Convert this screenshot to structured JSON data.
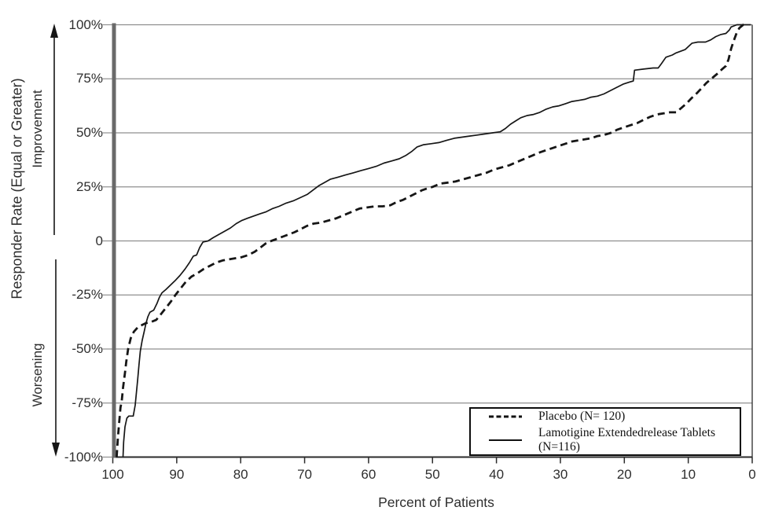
{
  "figure": {
    "y_axis": {
      "label": "Responder Rate (Equal or Greater)",
      "upper_label": "Improvement",
      "lower_label": "Worsening"
    },
    "x_axis": {
      "label": "Percent of Patients"
    },
    "legend": {
      "items": [
        {
          "label": "Placebo (N= 120)",
          "style": "dashed"
        },
        {
          "label": "Lamotigine Extendedrelease Tablets (N=116)",
          "style": "solid"
        }
      ]
    }
  },
  "colors": {
    "curve": "#161616",
    "gridline": "#8f8f8f",
    "y_axis": "#6a6a6a",
    "axis_line": "#2b2b2b",
    "text": "#2e2e2e",
    "background": "#ffffff"
  },
  "chart_data": {
    "type": "line",
    "title": "",
    "xlabel": "Percent of Patients",
    "ylabel": "Responder Rate (Equal or Greater)",
    "x_axis_reversed": true,
    "xlim": [
      100,
      0
    ],
    "ylim": [
      -100,
      100
    ],
    "grid": true,
    "legend_position": "lower right",
    "annotations": [
      "Improvement",
      "Worsening"
    ],
    "x_ticks": [
      {
        "label": "100",
        "value": 100
      },
      {
        "label": "90",
        "value": 90
      },
      {
        "label": "80",
        "value": 80
      },
      {
        "label": "70",
        "value": 70
      },
      {
        "label": "60",
        "value": 60
      },
      {
        "label": "50",
        "value": 50
      },
      {
        "label": "40",
        "value": 40
      },
      {
        "label": "30",
        "value": 30
      },
      {
        "label": "20",
        "value": 20
      },
      {
        "label": "10",
        "value": 10
      },
      {
        "label": "0",
        "value": 0
      }
    ],
    "y_ticks": [
      {
        "label": "100%",
        "value": 100
      },
      {
        "label": "75%",
        "value": 75
      },
      {
        "label": "50%",
        "value": 50
      },
      {
        "label": "25%",
        "value": 25
      },
      {
        "label": "0",
        "value": 0
      },
      {
        "label": "-25%",
        "value": -25
      },
      {
        "label": "-50%",
        "value": -50
      },
      {
        "label": "-75%",
        "value": -75
      },
      {
        "label": "-100%",
        "value": -100
      }
    ],
    "series": [
      {
        "name": "Placebo (N= 120)",
        "style": "dashed",
        "points": [
          [
            99.4,
            -100
          ],
          [
            99.2,
            -91
          ],
          [
            99,
            -84
          ],
          [
            98.8,
            -77
          ],
          [
            98.6,
            -74
          ],
          [
            98.4,
            -68
          ],
          [
            98.1,
            -61
          ],
          [
            97.9,
            -56
          ],
          [
            97.6,
            -50
          ],
          [
            97.2,
            -45
          ],
          [
            96.7,
            -42
          ],
          [
            96.1,
            -40
          ],
          [
            95.5,
            -39
          ],
          [
            94.8,
            -38
          ],
          [
            94,
            -37.5
          ],
          [
            93.2,
            -36.5
          ],
          [
            92.5,
            -34
          ],
          [
            91.7,
            -31
          ],
          [
            90.9,
            -28
          ],
          [
            90.2,
            -25
          ],
          [
            89.4,
            -22
          ],
          [
            88.6,
            -19
          ],
          [
            87.7,
            -16.5
          ],
          [
            86.8,
            -15
          ],
          [
            85.8,
            -13
          ],
          [
            84.8,
            -11.5
          ],
          [
            83.8,
            -10
          ],
          [
            82.8,
            -9
          ],
          [
            81.8,
            -8.5
          ],
          [
            80.8,
            -8
          ],
          [
            79.8,
            -7.5
          ],
          [
            78.8,
            -6.5
          ],
          [
            77.8,
            -5
          ],
          [
            76.9,
            -3
          ],
          [
            76,
            -1
          ],
          [
            75.2,
            0
          ],
          [
            74.3,
            1
          ],
          [
            73.4,
            2
          ],
          [
            72.5,
            3
          ],
          [
            71.6,
            4
          ],
          [
            70.6,
            5.5
          ],
          [
            69.6,
            7
          ],
          [
            68.6,
            8
          ],
          [
            67.4,
            8.5
          ],
          [
            66.2,
            9.5
          ],
          [
            65,
            10.5
          ],
          [
            63.8,
            12
          ],
          [
            62.6,
            13.5
          ],
          [
            61.4,
            15
          ],
          [
            60.2,
            15.5
          ],
          [
            59,
            16
          ],
          [
            57.8,
            16
          ],
          [
            56.6,
            16.5
          ],
          [
            55.6,
            18
          ],
          [
            54.6,
            19
          ],
          [
            53.6,
            20.5
          ],
          [
            52.6,
            22
          ],
          [
            51.6,
            23.5
          ],
          [
            50.6,
            24.5
          ],
          [
            50,
            25
          ],
          [
            48.8,
            26.5
          ],
          [
            47.6,
            27
          ],
          [
            46.4,
            27.5
          ],
          [
            45.2,
            28.5
          ],
          [
            44,
            29.5
          ],
          [
            42.8,
            30.5
          ],
          [
            41.6,
            31.5
          ],
          [
            40.4,
            33
          ],
          [
            39.2,
            34
          ],
          [
            38,
            35
          ],
          [
            36.8,
            36.5
          ],
          [
            35.6,
            38
          ],
          [
            34.4,
            39.5
          ],
          [
            33.2,
            41
          ],
          [
            32.2,
            42
          ],
          [
            31.2,
            43
          ],
          [
            30.2,
            44
          ],
          [
            29.2,
            45
          ],
          [
            28.2,
            46
          ],
          [
            27.2,
            46.5
          ],
          [
            26.2,
            47
          ],
          [
            25.2,
            47.5
          ],
          [
            24.2,
            48.5
          ],
          [
            23.2,
            49
          ],
          [
            22.1,
            50
          ],
          [
            21.1,
            51.5
          ],
          [
            20.1,
            52.5
          ],
          [
            19.1,
            53.5
          ],
          [
            18,
            54.5
          ],
          [
            17,
            56
          ],
          [
            15.9,
            57.5
          ],
          [
            14.9,
            58.5
          ],
          [
            13.9,
            59
          ],
          [
            12.9,
            59.5
          ],
          [
            11.9,
            59.5
          ],
          [
            11.1,
            61.5
          ],
          [
            10.3,
            63.5
          ],
          [
            9.5,
            66
          ],
          [
            8.6,
            68.5
          ],
          [
            7.8,
            71
          ],
          [
            7.2,
            73
          ],
          [
            6.6,
            74.5
          ],
          [
            6,
            76
          ],
          [
            5.4,
            77.5
          ],
          [
            4.7,
            79.5
          ],
          [
            4.1,
            81
          ],
          [
            3.7,
            84
          ],
          [
            3.3,
            89
          ],
          [
            2.9,
            92.5
          ],
          [
            2.4,
            96.5
          ],
          [
            2,
            98.5
          ],
          [
            1.4,
            100
          ],
          [
            0.7,
            100
          ]
        ]
      },
      {
        "name": "Lamotigine Extendedrelease Tablets (N=116)",
        "style": "solid",
        "points": [
          [
            98.4,
            -100
          ],
          [
            98.3,
            -93
          ],
          [
            98.1,
            -86
          ],
          [
            97.8,
            -82
          ],
          [
            97.5,
            -81
          ],
          [
            96.8,
            -81
          ],
          [
            96.5,
            -76
          ],
          [
            96.3,
            -70
          ],
          [
            96.1,
            -64
          ],
          [
            95.9,
            -57
          ],
          [
            95.7,
            -51
          ],
          [
            95.4,
            -46
          ],
          [
            95.1,
            -42
          ],
          [
            94.8,
            -38
          ],
          [
            94.5,
            -35
          ],
          [
            94.2,
            -33
          ],
          [
            93.6,
            -32
          ],
          [
            93.1,
            -29
          ],
          [
            92.7,
            -26
          ],
          [
            92.3,
            -24
          ],
          [
            91.7,
            -22.5
          ],
          [
            91,
            -20.5
          ],
          [
            90.3,
            -18.5
          ],
          [
            89.5,
            -16
          ],
          [
            88.7,
            -13
          ],
          [
            88,
            -10
          ],
          [
            87.4,
            -7
          ],
          [
            86.9,
            -6.5
          ],
          [
            86.4,
            -3
          ],
          [
            85.9,
            -0.5
          ],
          [
            85.1,
            0
          ],
          [
            84.3,
            1.5
          ],
          [
            83.4,
            3
          ],
          [
            82.5,
            4.5
          ],
          [
            81.6,
            6
          ],
          [
            80.7,
            8
          ],
          [
            79.8,
            9.5
          ],
          [
            78.9,
            10.5
          ],
          [
            78,
            11.5
          ],
          [
            77,
            12.5
          ],
          [
            76,
            13.5
          ],
          [
            75,
            15
          ],
          [
            74,
            16
          ],
          [
            72.9,
            17.5
          ],
          [
            71.8,
            18.5
          ],
          [
            70.7,
            20
          ],
          [
            69.6,
            21.5
          ],
          [
            68.7,
            23.5
          ],
          [
            67.8,
            25.5
          ],
          [
            66.9,
            27
          ],
          [
            66,
            28.5
          ],
          [
            64.8,
            29.5
          ],
          [
            63.6,
            30.5
          ],
          [
            62.4,
            31.5
          ],
          [
            61.2,
            32.5
          ],
          [
            60,
            33.5
          ],
          [
            58.8,
            34.5
          ],
          [
            57.6,
            36
          ],
          [
            56.4,
            37
          ],
          [
            55.2,
            38
          ],
          [
            54.2,
            39.5
          ],
          [
            53.2,
            41.5
          ],
          [
            52.4,
            43.5
          ],
          [
            51.4,
            44.5
          ],
          [
            50.2,
            45
          ],
          [
            49,
            45.5
          ],
          [
            47.8,
            46.5
          ],
          [
            46.6,
            47.5
          ],
          [
            45.4,
            48
          ],
          [
            44.2,
            48.5
          ],
          [
            43,
            49
          ],
          [
            41.8,
            49.5
          ],
          [
            40.6,
            50
          ],
          [
            39.4,
            50.5
          ],
          [
            38.6,
            52
          ],
          [
            37.8,
            54
          ],
          [
            37,
            55.5
          ],
          [
            36.2,
            57
          ],
          [
            35.2,
            58
          ],
          [
            34.2,
            58.5
          ],
          [
            33.2,
            59.5
          ],
          [
            32.2,
            61
          ],
          [
            31.2,
            62
          ],
          [
            30.2,
            62.5
          ],
          [
            29.2,
            63.5
          ],
          [
            28.2,
            64.5
          ],
          [
            27.2,
            65
          ],
          [
            26.2,
            65.5
          ],
          [
            25.2,
            66.5
          ],
          [
            24.2,
            67
          ],
          [
            23.2,
            68
          ],
          [
            22.2,
            69.5
          ],
          [
            21.2,
            71
          ],
          [
            20.2,
            72.5
          ],
          [
            19.2,
            73.5
          ],
          [
            18.6,
            74
          ],
          [
            18.4,
            79
          ],
          [
            17,
            79.5
          ],
          [
            15.5,
            80
          ],
          [
            14.7,
            80
          ],
          [
            14.2,
            82
          ],
          [
            13.5,
            85
          ],
          [
            12.5,
            86
          ],
          [
            11.9,
            87
          ],
          [
            10.5,
            88.5
          ],
          [
            9.4,
            91.5
          ],
          [
            8.5,
            92
          ],
          [
            7.3,
            92
          ],
          [
            6.5,
            93
          ],
          [
            5.7,
            94.5
          ],
          [
            4.9,
            95.5
          ],
          [
            4.1,
            96
          ],
          [
            3.6,
            97.5
          ],
          [
            3.3,
            99
          ],
          [
            2.4,
            100
          ],
          [
            0.2,
            100
          ]
        ]
      }
    ]
  }
}
